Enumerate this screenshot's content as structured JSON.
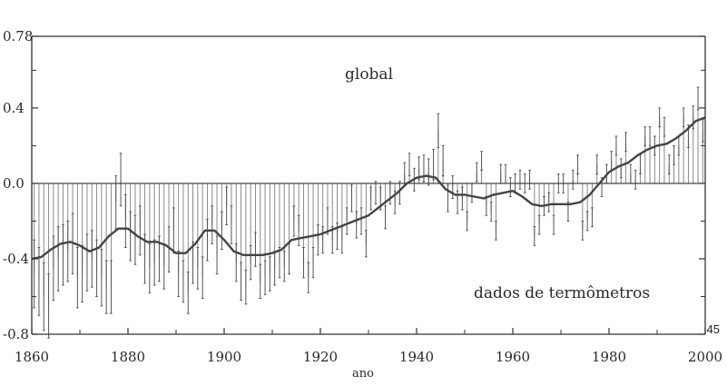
{
  "page_number": "45",
  "chart_data": {
    "type": "bar",
    "annotations": {
      "top_label": "global",
      "bottom_label": "dados de termômetros",
      "xlabel_partial": "ano"
    },
    "xlim": [
      1860,
      2000
    ],
    "ylim": [
      -0.8,
      0.78
    ],
    "x_ticks": [
      1860,
      1880,
      1900,
      1920,
      1940,
      1960,
      1980,
      2000
    ],
    "y_ticks": [
      {
        "value": 0.78,
        "label": "0.78"
      },
      {
        "value": 0.4,
        "label": "0.4"
      },
      {
        "value": 0.0,
        "label": "0.0"
      },
      {
        "value": -0.4,
        "label": "-0.4"
      },
      {
        "value": -0.8,
        "label": "-0.8"
      }
    ],
    "colors": {
      "bars": "#8a8a8a",
      "smooth": "#444444",
      "axis": "#333333"
    },
    "bar_series": {
      "name": "",
      "x": [
        1860,
        1861,
        1862,
        1863,
        1864,
        1865,
        1866,
        1867,
        1868,
        1869,
        1870,
        1871,
        1872,
        1873,
        1874,
        1875,
        1876,
        1877,
        1878,
        1879,
        1880,
        1881,
        1882,
        1883,
        1884,
        1885,
        1886,
        1887,
        1888,
        1889,
        1890,
        1891,
        1892,
        1893,
        1894,
        1895,
        1896,
        1897,
        1898,
        1899,
        1900,
        1901,
        1902,
        1903,
        1904,
        1905,
        1906,
        1907,
        1908,
        1909,
        1910,
        1911,
        1912,
        1913,
        1914,
        1915,
        1916,
        1917,
        1918,
        1919,
        1920,
        1921,
        1922,
        1923,
        1924,
        1925,
        1926,
        1927,
        1928,
        1929,
        1930,
        1931,
        1932,
        1933,
        1934,
        1935,
        1936,
        1937,
        1938,
        1939,
        1940,
        1941,
        1942,
        1943,
        1944,
        1945,
        1946,
        1947,
        1948,
        1949,
        1950,
        1951,
        1952,
        1953,
        1954,
        1955,
        1956,
        1957,
        1958,
        1959,
        1960,
        1961,
        1962,
        1963,
        1964,
        1965,
        1966,
        1967,
        1968,
        1969,
        1970,
        1971,
        1972,
        1973,
        1974,
        1975,
        1976,
        1977,
        1978,
        1979,
        1980,
        1981,
        1982,
        1983,
        1984,
        1985,
        1986,
        1987,
        1988,
        1989,
        1990,
        1991,
        1992,
        1993,
        1994,
        1995,
        1996,
        1997,
        1998,
        1999
      ],
      "values": [
        -0.48,
        -0.52,
        -0.6,
        -0.65,
        -0.45,
        -0.4,
        -0.38,
        -0.36,
        -0.32,
        -0.5,
        -0.48,
        -0.42,
        -0.4,
        -0.45,
        -0.5,
        -0.55,
        -0.55,
        -0.1,
        0.02,
        -0.2,
        -0.28,
        -0.3,
        -0.25,
        -0.4,
        -0.45,
        -0.42,
        -0.4,
        -0.44,
        -0.35,
        -0.25,
        -0.48,
        -0.52,
        -0.58,
        -0.42,
        -0.45,
        -0.5,
        -0.3,
        -0.22,
        -0.38,
        -0.25,
        -0.12,
        -0.22,
        -0.42,
        -0.52,
        -0.55,
        -0.42,
        -0.35,
        -0.52,
        -0.5,
        -0.48,
        -0.45,
        -0.42,
        -0.44,
        -0.4,
        -0.2,
        -0.25,
        -0.42,
        -0.5,
        -0.42,
        -0.3,
        -0.3,
        -0.2,
        -0.3,
        -0.28,
        -0.3,
        -0.2,
        -0.08,
        -0.22,
        -0.2,
        -0.32,
        -0.08,
        -0.05,
        -0.08,
        -0.18,
        -0.05,
        -0.1,
        -0.05,
        0.05,
        0.1,
        0.02,
        0.08,
        0.08,
        0.06,
        0.1,
        0.28,
        0.12,
        -0.08,
        -0.02,
        -0.1,
        -0.08,
        -0.2,
        -0.05,
        0.06,
        0.12,
        -0.12,
        -0.15,
        -0.25,
        0.05,
        0.05,
        -0.02,
        0.0,
        0.02,
        0.0,
        0.02,
        -0.28,
        -0.22,
        -0.12,
        -0.1,
        -0.22,
        0.0,
        0.0,
        -0.15,
        0.02,
        0.1,
        -0.25,
        -0.2,
        -0.18,
        0.1,
        -0.02,
        0.05,
        0.12,
        0.2,
        0.08,
        0.22,
        0.05,
        0.02,
        0.1,
        0.25,
        0.25,
        0.2,
        0.35,
        0.3,
        0.1,
        0.15,
        0.2,
        0.35,
        0.25,
        0.35,
        0.45,
        0.28
      ],
      "err": [
        0.18,
        0.18,
        0.18,
        0.17,
        0.17,
        0.17,
        0.16,
        0.16,
        0.16,
        0.16,
        0.15,
        0.15,
        0.15,
        0.15,
        0.15,
        0.14,
        0.14,
        0.14,
        0.14,
        0.14,
        0.13,
        0.13,
        0.13,
        0.13,
        0.13,
        0.12,
        0.12,
        0.12,
        0.12,
        0.12,
        0.12,
        0.11,
        0.11,
        0.11,
        0.11,
        0.11,
        0.11,
        0.1,
        0.1,
        0.1,
        0.1,
        0.1,
        0.1,
        0.1,
        0.09,
        0.09,
        0.09,
        0.09,
        0.09,
        0.09,
        0.09,
        0.08,
        0.08,
        0.08,
        0.08,
        0.08,
        0.08,
        0.08,
        0.08,
        0.08,
        0.07,
        0.07,
        0.07,
        0.07,
        0.07,
        0.07,
        0.07,
        0.07,
        0.07,
        0.07,
        0.06,
        0.06,
        0.06,
        0.06,
        0.06,
        0.06,
        0.06,
        0.06,
        0.06,
        0.06,
        0.06,
        0.07,
        0.07,
        0.08,
        0.09,
        0.08,
        0.07,
        0.06,
        0.06,
        0.06,
        0.05,
        0.05,
        0.05,
        0.05,
        0.05,
        0.05,
        0.05,
        0.05,
        0.05,
        0.05,
        0.05,
        0.05,
        0.05,
        0.05,
        0.05,
        0.05,
        0.05,
        0.05,
        0.05,
        0.05,
        0.05,
        0.05,
        0.05,
        0.05,
        0.05,
        0.05,
        0.05,
        0.05,
        0.05,
        0.05,
        0.05,
        0.05,
        0.05,
        0.05,
        0.05,
        0.05,
        0.05,
        0.05,
        0.05,
        0.05,
        0.05,
        0.05,
        0.05,
        0.05,
        0.05,
        0.05,
        0.06,
        0.06,
        0.06,
        0.06
      ]
    },
    "smooth_series": {
      "name": "",
      "x": [
        1860,
        1862,
        1864,
        1866,
        1868,
        1870,
        1872,
        1874,
        1876,
        1878,
        1880,
        1882,
        1884,
        1886,
        1888,
        1890,
        1892,
        1894,
        1896,
        1898,
        1900,
        1902,
        1904,
        1906,
        1908,
        1910,
        1912,
        1914,
        1916,
        1918,
        1920,
        1922,
        1924,
        1926,
        1928,
        1930,
        1932,
        1934,
        1936,
        1938,
        1940,
        1942,
        1944,
        1946,
        1948,
        1950,
        1952,
        1954,
        1956,
        1958,
        1960,
        1962,
        1964,
        1966,
        1968,
        1970,
        1972,
        1974,
        1976,
        1978,
        1980,
        1982,
        1984,
        1986,
        1988,
        1990,
        1992,
        1994,
        1996,
        1998,
        2000
      ],
      "values": [
        -0.4,
        -0.39,
        -0.35,
        -0.32,
        -0.31,
        -0.33,
        -0.36,
        -0.34,
        -0.28,
        -0.24,
        -0.24,
        -0.28,
        -0.31,
        -0.31,
        -0.33,
        -0.37,
        -0.37,
        -0.32,
        -0.25,
        -0.25,
        -0.3,
        -0.36,
        -0.38,
        -0.38,
        -0.38,
        -0.37,
        -0.35,
        -0.3,
        -0.29,
        -0.28,
        -0.27,
        -0.25,
        -0.23,
        -0.21,
        -0.19,
        -0.17,
        -0.13,
        -0.09,
        -0.05,
        0.0,
        0.03,
        0.04,
        0.03,
        -0.03,
        -0.06,
        -0.06,
        -0.07,
        -0.08,
        -0.06,
        -0.05,
        -0.04,
        -0.07,
        -0.11,
        -0.12,
        -0.11,
        -0.11,
        -0.11,
        -0.1,
        -0.06,
        0.0,
        0.06,
        0.09,
        0.11,
        0.15,
        0.18,
        0.2,
        0.21,
        0.24,
        0.28,
        0.33,
        0.35
      ]
    }
  }
}
